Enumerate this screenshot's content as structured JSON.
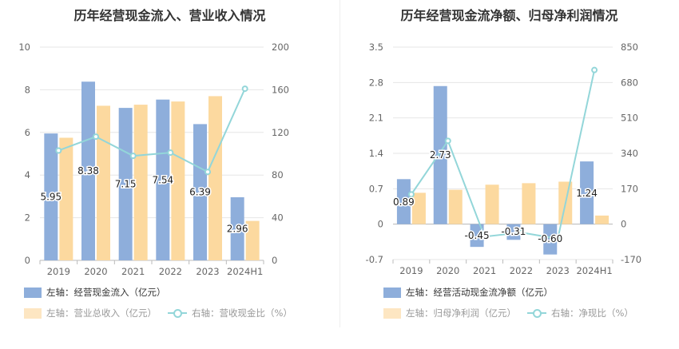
{
  "chart_data": [
    {
      "type": "bar",
      "title": "历年经营现金流入、营业收入情况",
      "categories": [
        "2019",
        "2020",
        "2021",
        "2022",
        "2023",
        "2024H1"
      ],
      "left_axis": {
        "ylim": [
          0,
          10
        ],
        "ticks": [
          "0",
          "2",
          "4",
          "6",
          "8",
          "10"
        ]
      },
      "right_axis": {
        "ylim": [
          0,
          200
        ],
        "ticks": [
          "0",
          "40",
          "80",
          "120",
          "160",
          "200"
        ]
      },
      "series": [
        {
          "name": "左轴：经营现金流入（亿元）",
          "axis": "left",
          "kind": "bar",
          "color": "#8eaedb",
          "values": [
            5.95,
            8.38,
            7.15,
            7.54,
            6.39,
            2.96
          ],
          "labels": [
            "5.95",
            "8.38",
            "7.15",
            "7.54",
            "6.39",
            "2.96"
          ]
        },
        {
          "name": "左轴：营业总收入（亿元）",
          "axis": "left",
          "kind": "bar",
          "color": "#fcd99f",
          "values": [
            5.75,
            7.25,
            7.3,
            7.45,
            7.7,
            1.85
          ]
        },
        {
          "name": "右轴：营收现金比（%）",
          "axis": "right",
          "kind": "line",
          "color": "#93d6d9",
          "values": [
            103,
            116,
            98,
            101,
            83,
            161
          ]
        }
      ],
      "legend_position": "bottom"
    },
    {
      "type": "bar",
      "title": "历年经营现金流净额、归母净利润情况",
      "categories": [
        "2019",
        "2020",
        "2021",
        "2022",
        "2023",
        "2024H1"
      ],
      "left_axis": {
        "ylim": [
          -0.7,
          3.5
        ],
        "ticks": [
          "-0.7",
          "0",
          "0.7",
          "1.4",
          "2.1",
          "2.8",
          "3.5"
        ]
      },
      "right_axis": {
        "ylim": [
          -170,
          850
        ],
        "ticks": [
          "-170",
          "0",
          "170",
          "340",
          "510",
          "680",
          "850"
        ]
      },
      "series": [
        {
          "name": "左轴：经营活动现金流净额（亿元）",
          "axis": "left",
          "kind": "bar",
          "color": "#8eaedb",
          "values": [
            0.89,
            2.73,
            -0.45,
            -0.31,
            -0.6,
            1.24
          ],
          "labels": [
            "0.89",
            "2.73",
            "-0.45",
            "-0.31",
            "-0.60",
            "1.24"
          ]
        },
        {
          "name": "左轴：归母净利润（亿元）",
          "axis": "left",
          "kind": "bar",
          "color": "#fcd99f",
          "values": [
            0.62,
            0.68,
            0.78,
            0.81,
            0.84,
            0.17
          ]
        },
        {
          "name": "右轴：净现比（%）",
          "axis": "right",
          "kind": "line",
          "color": "#93d6d9",
          "values": [
            143,
            400,
            -60,
            -40,
            -70,
            740
          ]
        }
      ],
      "legend_position": "bottom"
    }
  ]
}
